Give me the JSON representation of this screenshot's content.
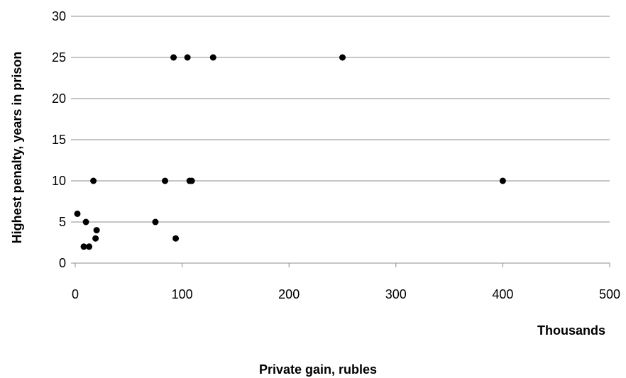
{
  "chart_data": {
    "type": "scatter",
    "title": "",
    "xlabel": "Private gain, rubles",
    "x_unit_label": "Thousands",
    "ylabel": "Highest penalty, years  in prison",
    "xlim": [
      0,
      500
    ],
    "ylim": [
      0,
      30
    ],
    "x_ticks": [
      0,
      100,
      200,
      300,
      400,
      500
    ],
    "y_ticks": [
      0,
      5,
      10,
      15,
      20,
      25,
      30
    ],
    "grid": "horizontal",
    "legend": "none",
    "marker_color": "#000000",
    "points": [
      {
        "x": 2,
        "y": 6
      },
      {
        "x": 10,
        "y": 5
      },
      {
        "x": 8,
        "y": 2
      },
      {
        "x": 13,
        "y": 2
      },
      {
        "x": 17,
        "y": 10
      },
      {
        "x": 19,
        "y": 3
      },
      {
        "x": 20,
        "y": 4
      },
      {
        "x": 75,
        "y": 5
      },
      {
        "x": 84,
        "y": 10
      },
      {
        "x": 94,
        "y": 3
      },
      {
        "x": 92,
        "y": 25
      },
      {
        "x": 105,
        "y": 25
      },
      {
        "x": 107,
        "y": 10
      },
      {
        "x": 109,
        "y": 10
      },
      {
        "x": 129,
        "y": 25
      },
      {
        "x": 250,
        "y": 25
      },
      {
        "x": 400,
        "y": 10
      }
    ]
  }
}
